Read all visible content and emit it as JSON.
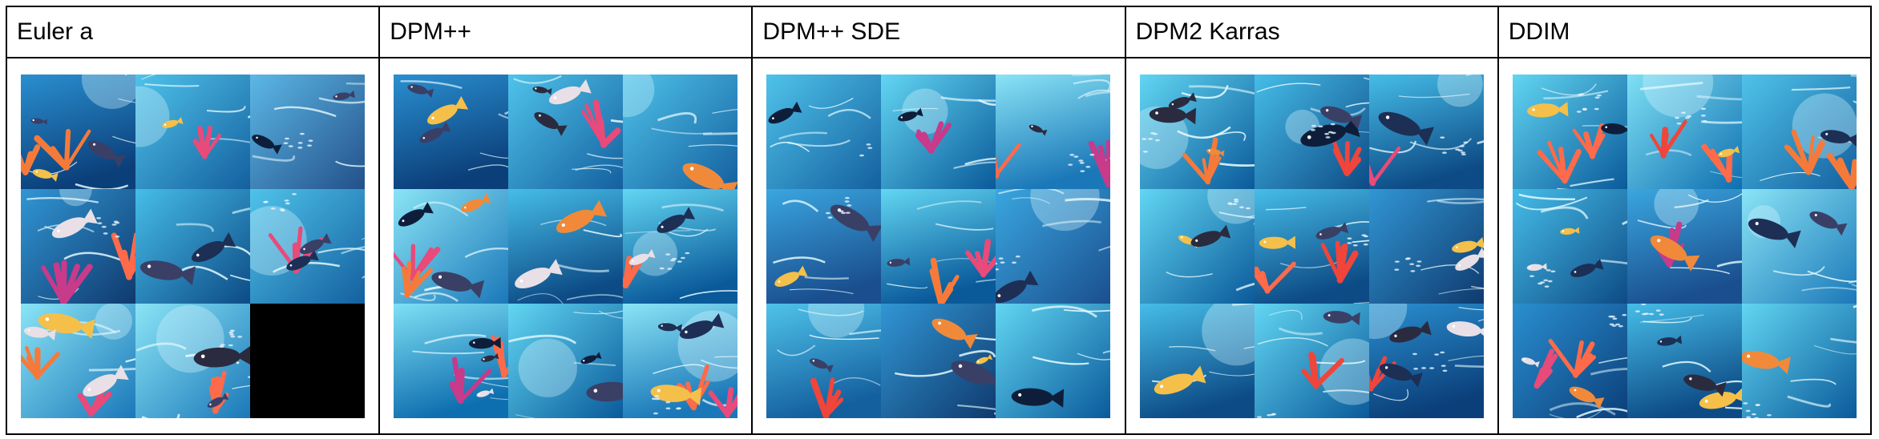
{
  "columns": [
    {
      "label": "Euler a",
      "tiles": 8
    },
    {
      "label": "DPM++",
      "tiles": 9
    },
    {
      "label": "DPM++ SDE",
      "tiles": 9
    },
    {
      "label": "DPM2 Karras",
      "tiles": 9
    },
    {
      "label": "DDIM",
      "tiles": 9
    }
  ],
  "image_description": "3x3 grids of stylized underwater fish and coral illustrations",
  "colors": {
    "border": "#000000",
    "water_deep": "#0b3f7a",
    "water_mid": "#1f86c9",
    "water_light": "#5fd0f0",
    "coral_red": "#f0453a",
    "coral_pink": "#e84a7a",
    "fish_dark": "#0e1e3a",
    "empty_tile": "#000000"
  }
}
